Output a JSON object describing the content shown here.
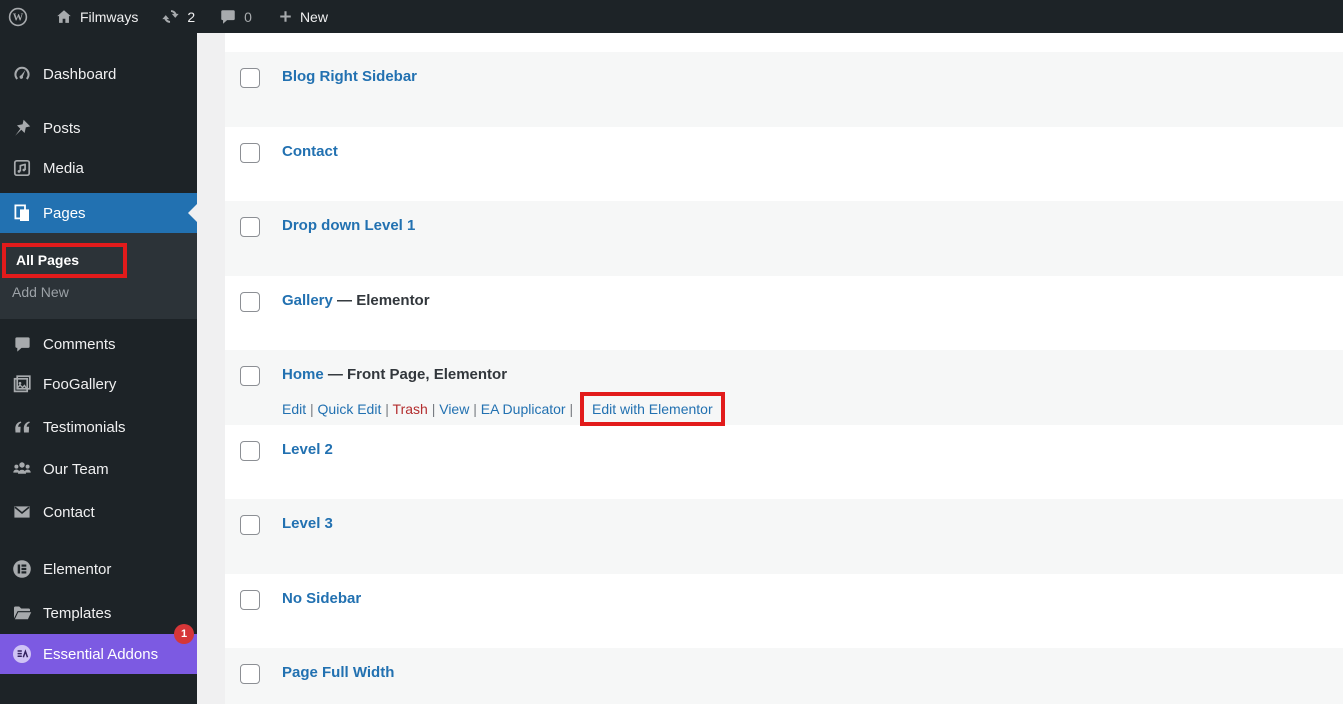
{
  "admin_bar": {
    "site_name": "Filmways",
    "update_count": "2",
    "comment_count": "0",
    "new_label": "New"
  },
  "sidebar": {
    "items": [
      {
        "id": "dashboard",
        "label": "Dashboard",
        "icon": "gauge-icon"
      },
      {
        "id": "posts",
        "label": "Posts",
        "icon": "pushpin-icon"
      },
      {
        "id": "media",
        "label": "Media",
        "icon": "media-icon"
      },
      {
        "id": "pages",
        "label": "Pages",
        "icon": "pages-icon",
        "active": true
      },
      {
        "id": "comments",
        "label": "Comments",
        "icon": "comment-icon"
      },
      {
        "id": "foogallery",
        "label": "FooGallery",
        "icon": "gallery-icon"
      },
      {
        "id": "testimonials",
        "label": "Testimonials",
        "icon": "quote-icon"
      },
      {
        "id": "our-team",
        "label": "Our Team",
        "icon": "team-icon"
      },
      {
        "id": "contact",
        "label": "Contact",
        "icon": "envelope-icon"
      },
      {
        "id": "elementor",
        "label": "Elementor",
        "icon": "elementor-icon"
      },
      {
        "id": "templates",
        "label": "Templates",
        "icon": "folder-icon"
      },
      {
        "id": "essential-addons",
        "label": "Essential Addons",
        "icon": "ea-icon",
        "highlight": true,
        "badge": "1"
      }
    ],
    "pages_submenu": [
      {
        "label": "All Pages",
        "current": true,
        "annotated": true
      },
      {
        "label": "Add New"
      }
    ]
  },
  "content": {
    "rows": [
      {
        "title": "Blog Right Sidebar"
      },
      {
        "title": "Contact"
      },
      {
        "title": "Drop down Level 1"
      },
      {
        "title": "Gallery",
        "state": " — Elementor"
      },
      {
        "title": "Home",
        "state": " — Front Page, Elementor",
        "actions": [
          {
            "label": "Edit"
          },
          {
            "label": "Quick Edit"
          },
          {
            "label": "Trash",
            "style": "trash"
          },
          {
            "label": "View"
          },
          {
            "label": "EA Duplicator"
          },
          {
            "label": "Edit with Elementor",
            "boxed": true
          }
        ]
      },
      {
        "title": "Level 2"
      },
      {
        "title": "Level 3"
      },
      {
        "title": "No Sidebar"
      },
      {
        "title": "Page Full Width"
      }
    ]
  },
  "colors": {
    "admin_bar_bg": "#1d2327",
    "sidebar_bg": "#1d2327",
    "submenu_bg": "#2c3338",
    "accent_blue": "#2271b1",
    "highlight_purple": "#7c5ae2",
    "annotation_red": "#e21b1b",
    "trash_red": "#b32d2e",
    "badge_red": "#d63638",
    "row_alt_bg": "#f6f7f7"
  }
}
